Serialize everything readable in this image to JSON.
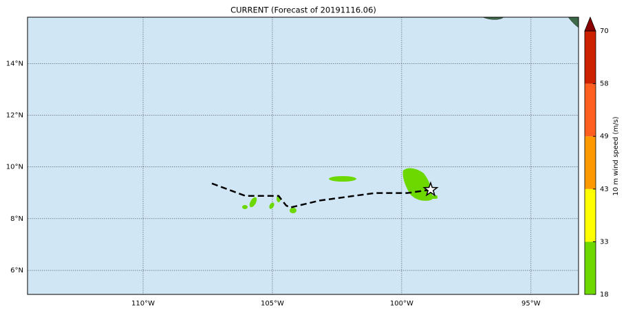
{
  "title": "CURRENT (Forecast of 20191116.06)",
  "map": {
    "lon_range": [
      -114.47,
      -93.16
    ],
    "lat_range": [
      5.07,
      15.79
    ],
    "lon_ticks": [
      {
        "value": -110,
        "label": "110°W"
      },
      {
        "value": -105,
        "label": "105°W"
      },
      {
        "value": -100,
        "label": "100°W"
      },
      {
        "value": -95,
        "label": "95°W"
      }
    ],
    "lat_ticks": [
      {
        "value": 6,
        "label": "6°N"
      },
      {
        "value": 8,
        "label": "8°N"
      },
      {
        "value": 10,
        "label": "10°N"
      },
      {
        "value": 12,
        "label": "12°N"
      },
      {
        "value": 14,
        "label": "14°N"
      }
    ],
    "ocean_color": "#d0e6f5",
    "track": {
      "lon": [
        -107.34,
        -106.04,
        -104.76,
        -104.47,
        -104.31,
        -103.17,
        -101.04,
        -99.79,
        -98.88
      ],
      "lat": [
        9.36,
        8.88,
        8.88,
        8.51,
        8.43,
        8.7,
        8.99,
        8.99,
        9.12
      ]
    },
    "storm": {
      "lon": -98.88,
      "lat": 9.12
    }
  },
  "colorbar": {
    "label": "10 m wind speed (m/s)",
    "levels": [
      18,
      33,
      43,
      49,
      58,
      70
    ],
    "colors": [
      "#6cd800",
      "#ffff00",
      "#ff9900",
      "#ff6020",
      "#cc2200"
    ],
    "extend_color": "#8b0000"
  }
}
